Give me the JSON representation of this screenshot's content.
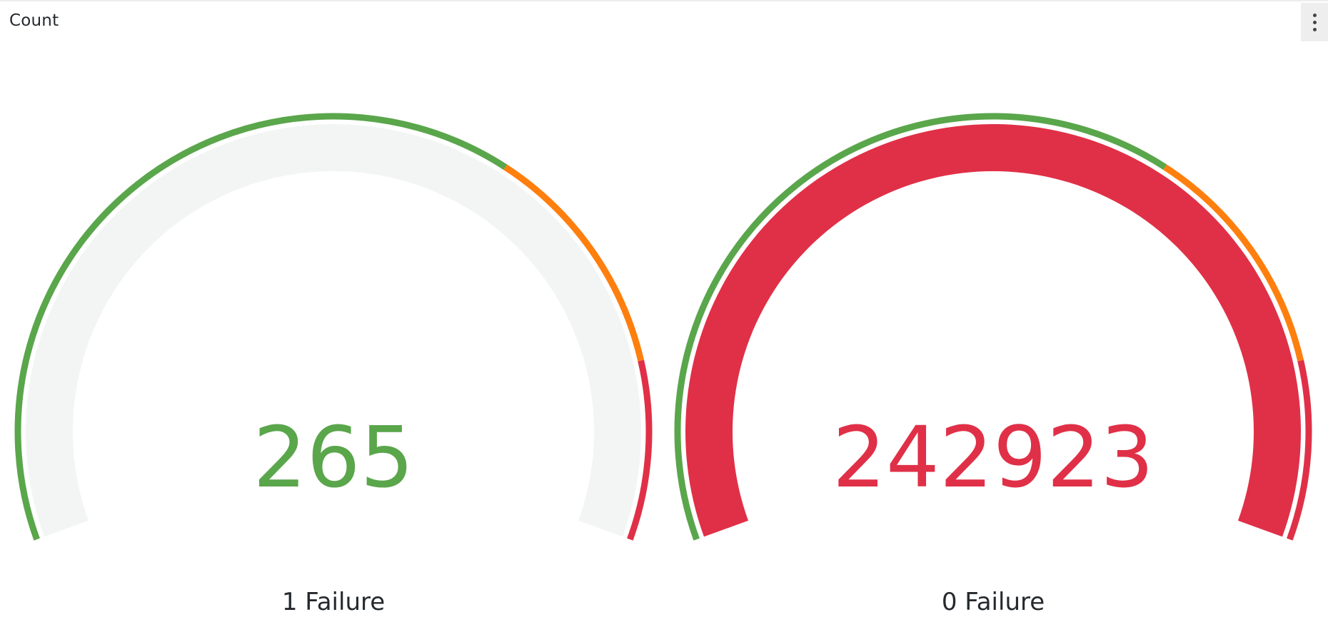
{
  "panel": {
    "title": "Count"
  },
  "menu": {
    "icon": "more-vertical-icon"
  },
  "colors": {
    "green": "#5aa64b",
    "orange": "#fe7f0e",
    "red": "#e03047",
    "track": "#f3f5f4"
  },
  "gauges": [
    {
      "value_text": "265",
      "value": 265,
      "fill_fraction": 0.0,
      "value_color": "#5aa64b",
      "fill_color": "#e03047",
      "caption": "1 Failure"
    },
    {
      "value_text": "242923",
      "value": 242923,
      "fill_fraction": 1.0,
      "value_color": "#e03047",
      "fill_color": "#e03047",
      "caption": "0 Failure"
    }
  ],
  "thresholds": [
    {
      "color": "green",
      "to_fraction": 0.65
    },
    {
      "color": "orange",
      "to_fraction": 0.85
    },
    {
      "color": "red",
      "to_fraction": 1.0
    }
  ]
}
